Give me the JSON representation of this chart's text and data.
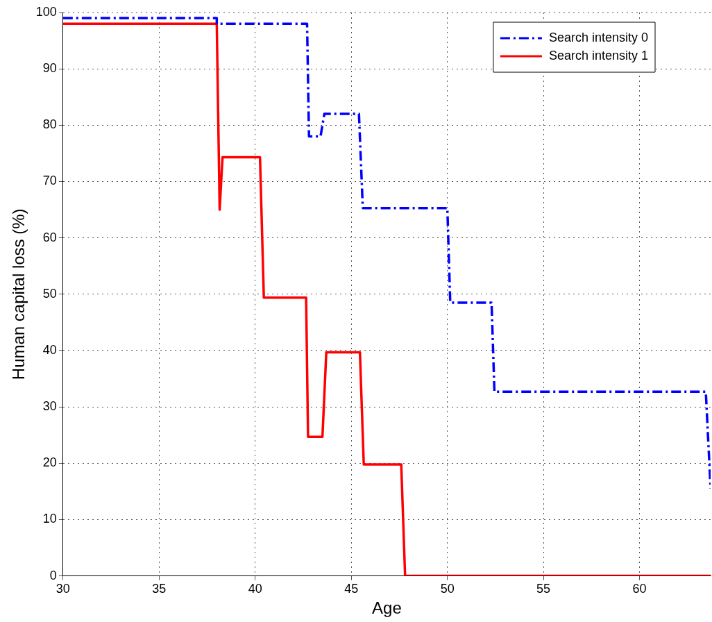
{
  "chart_data": {
    "type": "line",
    "xlabel": "Age",
    "ylabel": "Human capital loss (%)",
    "xlim": [
      30,
      63.7
    ],
    "xticks": [
      30,
      35,
      40,
      45,
      50,
      55,
      60
    ],
    "ylim": [
      0,
      100
    ],
    "yticks": [
      0,
      10,
      20,
      30,
      40,
      50,
      60,
      70,
      80,
      90,
      100
    ],
    "grid": true,
    "legend": "top right",
    "marker": "none",
    "series": [
      {
        "name": "Search intensity 0",
        "color": "#0000ff",
        "line_style": "dashed",
        "x": [
          30,
          38.0,
          38.0,
          42.7,
          42.8,
          43.4,
          43.6,
          45.4,
          45.6,
          50.0,
          50.15,
          52.3,
          52.45,
          63.45,
          63.7
        ],
        "values": [
          99,
          99,
          98,
          98,
          78,
          78,
          82,
          82,
          65.3,
          65.3,
          48.5,
          48.5,
          32.7,
          32.7,
          15.5
        ]
      },
      {
        "name": "Search intensity 1",
        "color": "#ff0000",
        "line_style": "solid",
        "x": [
          30,
          38.0,
          38.15,
          38.3,
          40.25,
          40.45,
          42.65,
          42.75,
          43.5,
          43.7,
          45.45,
          45.65,
          47.6,
          47.8,
          63.7
        ],
        "values": [
          98,
          98,
          65,
          74.3,
          74.3,
          49.4,
          49.4,
          24.7,
          24.7,
          39.7,
          39.7,
          19.8,
          19.8,
          0,
          0
        ]
      }
    ]
  }
}
